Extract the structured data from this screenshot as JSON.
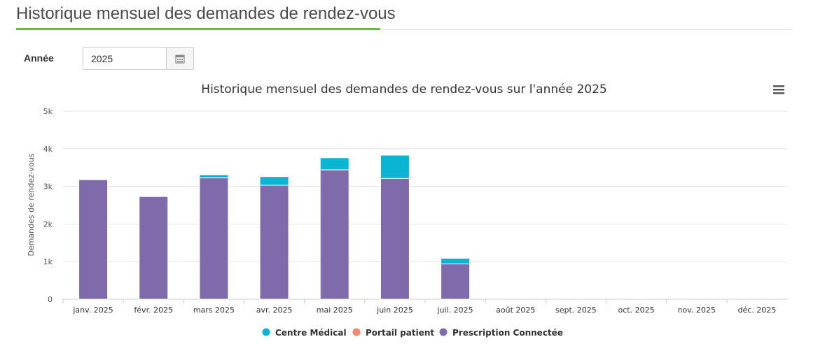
{
  "page": {
    "title": "Historique mensuel des demandes de rendez-vous"
  },
  "filter": {
    "year_label": "Année",
    "year_value": "2025",
    "calendar_icon": "calendar-icon"
  },
  "chart_menu_icon": "hamburger-menu-icon",
  "colors": {
    "centre_medical": "#0bb4d2",
    "portail_patient": "#f7876f",
    "prescription_connectee": "#7e6bab",
    "grid": "#e6e6e6",
    "title_accent": "#6ab93a"
  },
  "chart_data": {
    "type": "bar",
    "stacked": true,
    "title": "Historique mensuel des demandes de rendez-vous sur l'année 2025",
    "xlabel": "",
    "ylabel": "Demandes de rendez-vous",
    "ylim": [
      0,
      5000
    ],
    "yticks": [
      0,
      1000,
      2000,
      3000,
      4000,
      5000
    ],
    "ytick_labels": [
      "0",
      "1k",
      "2k",
      "3k",
      "4k",
      "5k"
    ],
    "grid": true,
    "legend_position": "bottom-center",
    "categories": [
      "janv. 2025",
      "févr. 2025",
      "mars 2025",
      "avr. 2025",
      "mai 2025",
      "juin 2025",
      "juil. 2025",
      "août 2025",
      "sept. 2025",
      "oct. 2025",
      "nov. 2025",
      "déc. 2025"
    ],
    "series": [
      {
        "name": "Prescription Connectée",
        "color": "#7e6bab",
        "values": [
          3180,
          2730,
          3230,
          3030,
          3440,
          3210,
          940,
          0,
          0,
          0,
          0,
          0
        ]
      },
      {
        "name": "Portail patient",
        "color": "#f7876f",
        "values": [
          0,
          0,
          0,
          0,
          0,
          0,
          0,
          0,
          0,
          0,
          0,
          0
        ]
      },
      {
        "name": "Centre Médical",
        "color": "#0bb4d2",
        "values": [
          0,
          0,
          80,
          230,
          320,
          620,
          150,
          0,
          0,
          0,
          0,
          0
        ]
      }
    ],
    "legend": [
      "Centre Médical",
      "Portail patient",
      "Prescription Connectée"
    ]
  }
}
